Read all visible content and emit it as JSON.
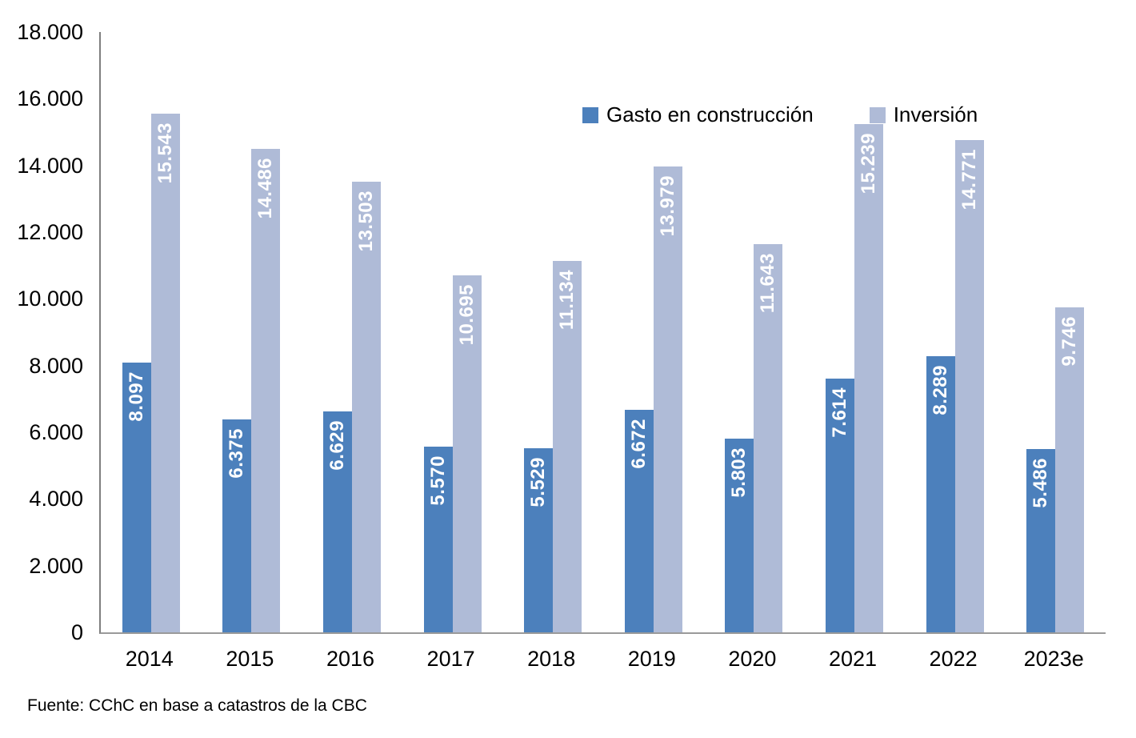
{
  "chart_data": {
    "type": "bar",
    "title": "",
    "categories": [
      "2014",
      "2015",
      "2016",
      "2017",
      "2018",
      "2019",
      "2020",
      "2021",
      "2022",
      "2023e"
    ],
    "series": [
      {
        "name": "Gasto en construcción",
        "key": "gasto-en-construccion",
        "color": "#4C80BC",
        "values": [
          8097,
          6375,
          6629,
          5570,
          5529,
          6672,
          5803,
          7614,
          8289,
          5486
        ],
        "value_labels": [
          "8.097",
          "6.375",
          "6.629",
          "5.570",
          "5.529",
          "6.672",
          "5.803",
          "7.614",
          "8.289",
          "5.486"
        ]
      },
      {
        "name": "Inversión",
        "key": "inversion",
        "color": "#AFBBD7",
        "values": [
          15543,
          14486,
          13503,
          10695,
          11134,
          13979,
          11643,
          15239,
          14771,
          9746
        ],
        "value_labels": [
          "15.543",
          "14.486",
          "13.503",
          "10.695",
          "11.134",
          "13.979",
          "11.643",
          "15.239",
          "14.771",
          "9.746"
        ]
      }
    ],
    "xlabel": "",
    "ylabel": "",
    "ylim": [
      0,
      18000
    ],
    "ytick_step": 2000,
    "ytick_labels": [
      "0",
      "2.000",
      "4.000",
      "6.000",
      "8.000",
      "10.000",
      "12.000",
      "14.000",
      "16.000",
      "18.000"
    ],
    "grid": false,
    "legend_position": "top-center",
    "value_label_color": "#FFFFFF",
    "axis_line_color": "#7F7F7F"
  },
  "source_note": "Fuente: CChC en base a catastros de la CBC"
}
